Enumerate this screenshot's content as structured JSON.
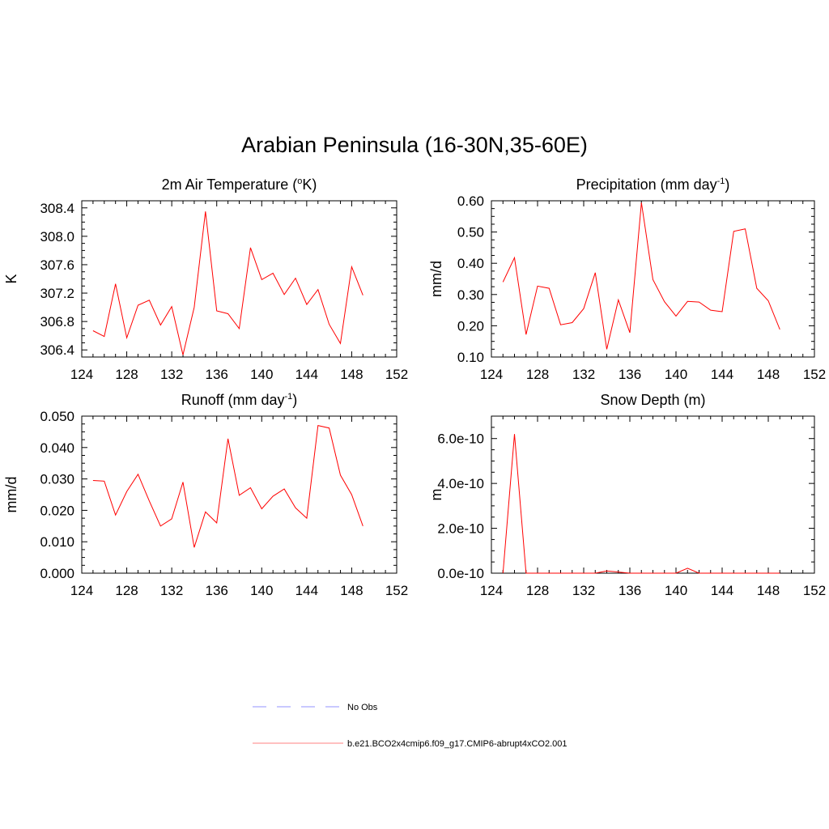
{
  "title": "Arabian Peninsula (16-30N,35-60E)",
  "legend": {
    "items": [
      {
        "label": "No Obs",
        "color": "#a9a9ff",
        "dashed": true
      },
      {
        "label": "b.e21.BCO2x4cmip6.f09_g17.CMIP6-abrupt4xCO2.001",
        "color": "#ff9a9a",
        "dashed": false
      }
    ]
  },
  "chart_data": [
    {
      "type": "line",
      "title": "2m Air Temperature (",
      "title_sup": "o",
      "title_tail": "K)",
      "ylabel": "K",
      "xlim": [
        124,
        152
      ],
      "xticks": [
        124,
        128,
        132,
        136,
        140,
        144,
        148,
        152
      ],
      "ylim": [
        306.3,
        308.5
      ],
      "yticks": [
        306.4,
        306.8,
        307.2,
        307.6,
        308.0,
        308.4
      ],
      "ytick_labels": [
        "306.4",
        "306.8",
        "307.2",
        "307.6",
        "308.0",
        "308.4"
      ],
      "series": [
        {
          "color": "#ff0000",
          "x": [
            125,
            126,
            127,
            128,
            129,
            130,
            131,
            132,
            133,
            134,
            135,
            136,
            137,
            138,
            139,
            140,
            141,
            142,
            143,
            144,
            145,
            146,
            147,
            148,
            149
          ],
          "y": [
            306.67,
            306.59,
            307.33,
            306.57,
            307.03,
            307.1,
            306.75,
            307.01,
            306.33,
            307.0,
            308.35,
            306.95,
            306.91,
            306.7,
            307.84,
            307.39,
            307.48,
            307.18,
            307.41,
            307.04,
            307.25,
            306.76,
            306.49,
            307.57,
            307.17
          ]
        }
      ]
    },
    {
      "type": "line",
      "title": "Precipitation (mm day",
      "title_sup": "-1",
      "title_tail": ")",
      "ylabel": "mm/d",
      "xlim": [
        124,
        152
      ],
      "xticks": [
        124,
        128,
        132,
        136,
        140,
        144,
        148,
        152
      ],
      "ylim": [
        0.1,
        0.6
      ],
      "yticks": [
        0.1,
        0.2,
        0.3,
        0.4,
        0.5,
        0.6
      ],
      "ytick_labels": [
        "0.10",
        "0.20",
        "0.30",
        "0.40",
        "0.50",
        "0.60"
      ],
      "series": [
        {
          "color": "#ff0000",
          "x": [
            125,
            126,
            127,
            128,
            129,
            130,
            131,
            132,
            133,
            134,
            135,
            136,
            137,
            138,
            139,
            140,
            141,
            142,
            143,
            144,
            145,
            146,
            147,
            148,
            149
          ],
          "y": [
            0.34,
            0.418,
            0.172,
            0.327,
            0.32,
            0.203,
            0.21,
            0.255,
            0.37,
            0.125,
            0.283,
            0.178,
            0.594,
            0.348,
            0.277,
            0.231,
            0.278,
            0.276,
            0.25,
            0.245,
            0.502,
            0.51,
            0.32,
            0.28,
            0.188
          ]
        }
      ]
    },
    {
      "type": "line",
      "title": "Runoff (mm day",
      "title_sup": "-1",
      "title_tail": ")",
      "ylabel": "mm/d",
      "xlim": [
        124,
        152
      ],
      "xticks": [
        124,
        128,
        132,
        136,
        140,
        144,
        148,
        152
      ],
      "ylim": [
        0.0,
        0.05
      ],
      "yticks": [
        0.0,
        0.01,
        0.02,
        0.03,
        0.04,
        0.05
      ],
      "ytick_labels": [
        "0.000",
        "0.010",
        "0.020",
        "0.030",
        "0.040",
        "0.050"
      ],
      "series": [
        {
          "color": "#ff0000",
          "x": [
            125,
            126,
            127,
            128,
            129,
            130,
            131,
            132,
            133,
            134,
            135,
            136,
            137,
            138,
            139,
            140,
            141,
            142,
            143,
            144,
            145,
            146,
            147,
            148,
            149
          ],
          "y": [
            0.0295,
            0.0293,
            0.0185,
            0.026,
            0.0315,
            0.023,
            0.015,
            0.0173,
            0.029,
            0.0082,
            0.0195,
            0.016,
            0.0428,
            0.0248,
            0.0272,
            0.0205,
            0.0245,
            0.0268,
            0.0208,
            0.0175,
            0.047,
            0.0462,
            0.0312,
            0.025,
            0.015
          ]
        }
      ]
    },
    {
      "type": "line",
      "title": "Snow Depth (m)",
      "title_sup": "",
      "title_tail": "",
      "ylabel": "m",
      "xlim": [
        124,
        152
      ],
      "xticks": [
        124,
        128,
        132,
        136,
        140,
        144,
        148,
        152
      ],
      "ylim": [
        0,
        7e-10
      ],
      "yticks": [
        0,
        2e-10,
        4e-10,
        6e-10
      ],
      "ytick_labels": [
        "0.0e-10",
        "2.0e-10",
        "4.0e-10",
        "6.0e-10"
      ],
      "series": [
        {
          "color": "#ff0000",
          "x": [
            125,
            126,
            127,
            128,
            129,
            130,
            131,
            132,
            133,
            134,
            135,
            136,
            137,
            138,
            139,
            140,
            141,
            142,
            143,
            144,
            145,
            146,
            147,
            148,
            149
          ],
          "y": [
            0,
            6.2e-10,
            0,
            0,
            0,
            0,
            0,
            0,
            0,
            1e-11,
            5e-12,
            0,
            0,
            0,
            0,
            0,
            2.2e-11,
            0,
            0,
            0,
            0,
            0,
            0,
            0,
            0
          ]
        }
      ]
    }
  ]
}
